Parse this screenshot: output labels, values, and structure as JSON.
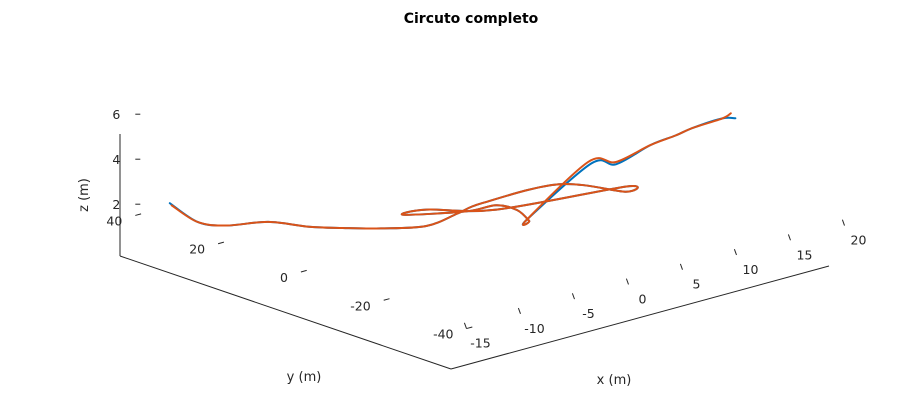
{
  "chart_data": {
    "type": "line",
    "projection": "3d",
    "title": "Circuto completo",
    "xlabel": "x (m)",
    "ylabel": "y (m)",
    "zlabel": "z (m)",
    "x_ticks": [
      "-15",
      "-10",
      "-5",
      "0",
      "5",
      "10",
      "15",
      "20"
    ],
    "y_ticks": [
      "-40",
      "-20",
      "0",
      "20",
      "40"
    ],
    "z_ticks": [
      "2",
      "4",
      "6"
    ],
    "xlim": [
      -15,
      20
    ],
    "ylim": [
      -40,
      40
    ],
    "zlim": [
      1.5,
      7
    ],
    "grid": false,
    "colors": {
      "measured": "#0072BD",
      "reference": "#D95319",
      "axis": "#262626"
    },
    "series": [
      {
        "color_key": "measured",
        "points": [
          [
            -15.1,
            31.4,
            2.6
          ],
          [
            -13.8,
            28.0,
            1.8
          ],
          [
            -12.5,
            24.5,
            1.7
          ],
          [
            -11.5,
            17.0,
            2.2
          ],
          [
            -10.8,
            9.0,
            2.4
          ],
          [
            -9.6,
            4.0,
            2.5
          ],
          [
            -7.7,
            -0.3,
            2.5
          ],
          [
            -5.0,
            -4.2,
            2.5
          ],
          [
            -4.9,
            -11.5,
            3.5
          ],
          [
            -5.1,
            -18.0,
            4.4
          ],
          [
            0.0,
            -23.2,
            4.9
          ],
          [
            6.0,
            -23.5,
            3.8
          ],
          [
            9.5,
            -14.5,
            3.0
          ],
          [
            1.1,
            -5.3,
            2.5
          ],
          [
            -3.2,
            0.5,
            2.7
          ],
          [
            -5.5,
            0.0,
            2.8
          ],
          [
            -2.1,
            -6.3,
            2.9
          ],
          [
            -0.3,
            -8.8,
            3.1
          ],
          [
            -0.3,
            -13.9,
            3.2
          ],
          [
            -1.3,
            -19.4,
            3.2
          ],
          [
            -3.0,
            -23.2,
            3.7
          ],
          [
            1.7,
            -26.5,
            5.8
          ],
          [
            3.9,
            -26.8,
            5.5
          ],
          [
            7.2,
            -26.5,
            5.9
          ],
          [
            9.6,
            -26.3,
            6.0
          ],
          [
            11.4,
            -26.0,
            6.1
          ],
          [
            14.6,
            -24.6,
            6.0
          ],
          [
            16.3,
            -23.3,
            5.7
          ]
        ]
      },
      {
        "color_key": "reference",
        "points": [
          [
            -15.0,
            31.2,
            2.5
          ],
          [
            -13.8,
            28.0,
            1.8
          ],
          [
            -12.5,
            24.5,
            1.7
          ],
          [
            -11.5,
            17.0,
            2.2
          ],
          [
            -10.8,
            9.0,
            2.4
          ],
          [
            -9.6,
            4.0,
            2.5
          ],
          [
            -7.7,
            -0.3,
            2.5
          ],
          [
            -5.0,
            -4.2,
            2.5
          ],
          [
            -4.9,
            -11.5,
            3.5
          ],
          [
            -5.1,
            -18.0,
            4.4
          ],
          [
            0.0,
            -23.2,
            4.9
          ],
          [
            6.0,
            -23.5,
            3.8
          ],
          [
            9.5,
            -14.5,
            3.0
          ],
          [
            1.1,
            -5.3,
            2.5
          ],
          [
            -3.2,
            0.5,
            2.7
          ],
          [
            -5.5,
            0.0,
            2.8
          ],
          [
            -2.1,
            -6.3,
            2.9
          ],
          [
            -0.3,
            -8.8,
            3.1
          ],
          [
            -0.3,
            -13.9,
            3.2
          ],
          [
            -1.3,
            -19.4,
            3.2
          ],
          [
            -3.0,
            -23.2,
            3.7
          ],
          [
            1.5,
            -26.4,
            5.9
          ],
          [
            3.9,
            -26.8,
            5.6
          ],
          [
            7.2,
            -26.5,
            5.9
          ],
          [
            9.6,
            -26.3,
            6.0
          ],
          [
            11.4,
            -26.0,
            6.1
          ],
          [
            14.6,
            -24.6,
            6.0
          ],
          [
            15.8,
            -23.5,
            6.0
          ]
        ]
      }
    ]
  }
}
